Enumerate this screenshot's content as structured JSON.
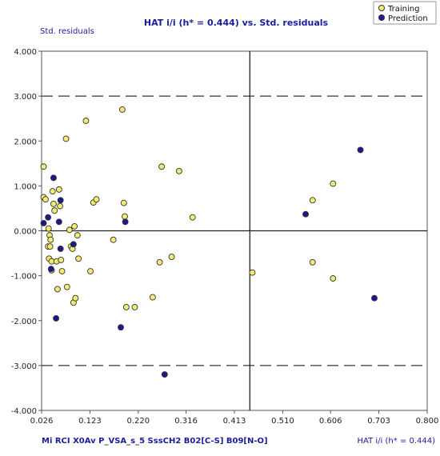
{
  "chart_data": {
    "type": "scatter",
    "title": "HAT i/i (h* = 0.444) vs. Std. residuals",
    "xlabel": "HAT i/i (h* = 0.444)",
    "ylabel": "Std. residuals",
    "footer": "Mi  RCI  X0Av  P_VSA_s_5  SssCH2  B02[C-S]  B09[N-O]",
    "xlim": [
      0.026,
      0.8
    ],
    "ylim": [
      -4.0,
      4.0
    ],
    "xticks": [
      "0.026",
      "0.123",
      "0.220",
      "0.316",
      "0.413",
      "0.510",
      "0.606",
      "0.703",
      "0.800"
    ],
    "yticks": [
      "4.000",
      "3.000",
      "2.000",
      "1.000",
      "0.000",
      "-1.000",
      "-2.000",
      "-3.000",
      "-4.000"
    ],
    "reference_lines": {
      "h_star": 0.444,
      "y_zero": 0,
      "y_upper": 3,
      "y_lower": -3
    },
    "grid": false,
    "legend_position": "top-right",
    "series": [
      {
        "name": "Training",
        "color": "#f2ec73",
        "points": [
          [
            0.03,
            1.43
          ],
          [
            0.03,
            0.75
          ],
          [
            0.034,
            0.7
          ],
          [
            0.04,
            0.05
          ],
          [
            0.042,
            -0.1
          ],
          [
            0.044,
            -0.2
          ],
          [
            0.039,
            -0.35
          ],
          [
            0.043,
            -0.35
          ],
          [
            0.041,
            -0.62
          ],
          [
            0.046,
            -0.68
          ],
          [
            0.046,
            -0.88
          ],
          [
            0.048,
            0.88
          ],
          [
            0.05,
            0.6
          ],
          [
            0.052,
            0.45
          ],
          [
            0.056,
            -0.68
          ],
          [
            0.058,
            -1.3
          ],
          [
            0.061,
            0.92
          ],
          [
            0.063,
            0.55
          ],
          [
            0.065,
            -0.65
          ],
          [
            0.067,
            -0.9
          ],
          [
            0.075,
            2.05
          ],
          [
            0.077,
            -1.25
          ],
          [
            0.082,
            0.02
          ],
          [
            0.085,
            -0.35
          ],
          [
            0.088,
            -0.4
          ],
          [
            0.09,
            -1.6
          ],
          [
            0.092,
            0.1
          ],
          [
            0.094,
            -1.5
          ],
          [
            0.098,
            -0.1
          ],
          [
            0.1,
            -0.62
          ],
          [
            0.115,
            2.45
          ],
          [
            0.124,
            -0.9
          ],
          [
            0.13,
            0.63
          ],
          [
            0.136,
            0.7
          ],
          [
            0.17,
            -0.2
          ],
          [
            0.188,
            2.7
          ],
          [
            0.191,
            0.62
          ],
          [
            0.193,
            0.32
          ],
          [
            0.196,
            -1.7
          ],
          [
            0.213,
            -1.7
          ],
          [
            0.249,
            -1.48
          ],
          [
            0.263,
            -0.7
          ],
          [
            0.267,
            1.43
          ],
          [
            0.287,
            -0.58
          ],
          [
            0.302,
            1.33
          ],
          [
            0.329,
            0.3
          ],
          [
            0.449,
            -0.93
          ],
          [
            0.57,
            0.68
          ],
          [
            0.57,
            -0.7
          ],
          [
            0.611,
            1.05
          ],
          [
            0.611,
            -1.06
          ]
        ]
      },
      {
        "name": "Prediction",
        "color": "#1a1a8c",
        "points": [
          [
            0.03,
            0.17
          ],
          [
            0.039,
            0.3
          ],
          [
            0.045,
            -0.85
          ],
          [
            0.05,
            1.18
          ],
          [
            0.055,
            -1.95
          ],
          [
            0.061,
            0.2
          ],
          [
            0.064,
            -0.4
          ],
          [
            0.064,
            0.68
          ],
          [
            0.09,
            -0.3
          ],
          [
            0.185,
            -2.15
          ],
          [
            0.194,
            0.2
          ],
          [
            0.273,
            -3.2
          ],
          [
            0.556,
            0.37
          ],
          [
            0.666,
            1.8
          ],
          [
            0.694,
            -1.5
          ]
        ]
      }
    ]
  }
}
